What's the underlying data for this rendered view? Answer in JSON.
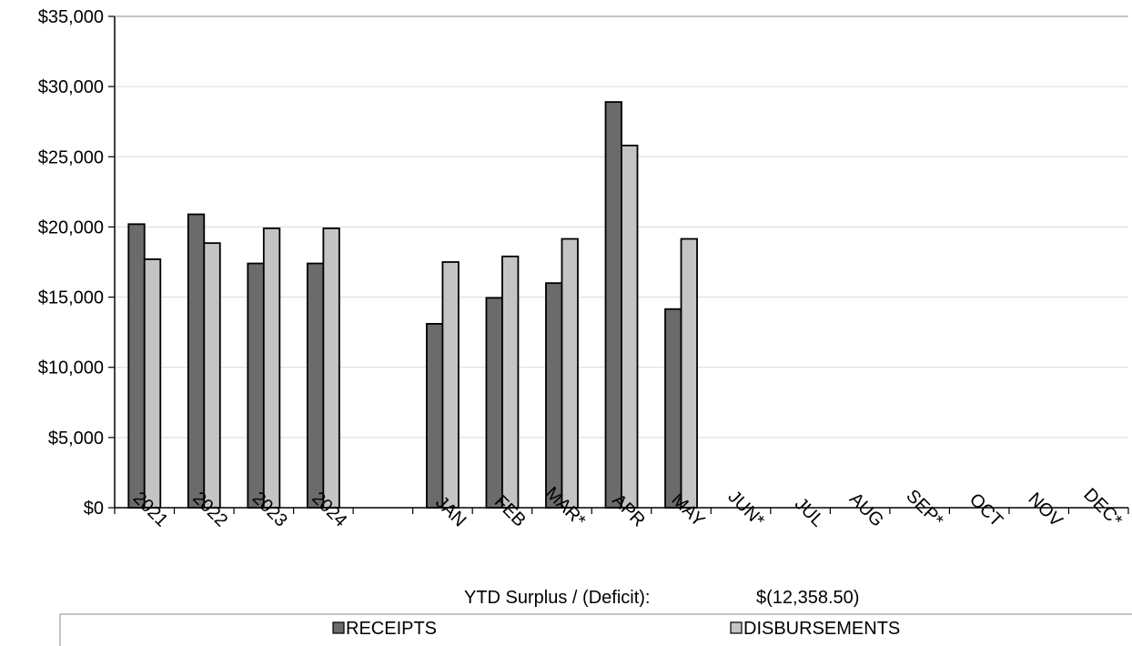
{
  "chart_data": {
    "type": "bar",
    "categories": [
      "2021",
      "2022",
      "2023",
      "2024",
      "",
      "JAN",
      "FEB",
      "MAR*",
      "APR",
      "MAY",
      "JUN*",
      "JUL",
      "AUG",
      "SEP*",
      "OCT",
      "NOV",
      "DEC*"
    ],
    "series": [
      {
        "name": "RECEIPTS",
        "color": "#6b6b6b",
        "values": [
          20200,
          20900,
          17400,
          17400,
          null,
          13100,
          14950,
          16000,
          28900,
          14150,
          null,
          null,
          null,
          null,
          null,
          null,
          null
        ]
      },
      {
        "name": "DISBURSEMENTS",
        "color": "#c4c4c4",
        "values": [
          17700,
          18850,
          19900,
          19900,
          null,
          17500,
          17900,
          19150,
          25800,
          19150,
          null,
          null,
          null,
          null,
          null,
          null,
          null
        ]
      }
    ],
    "ylim": [
      0,
      35000
    ],
    "yticks": [
      "$0",
      "$5,000",
      "$10,000",
      "$15,000",
      "$20,000",
      "$25,000",
      "$30,000",
      "$35,000"
    ],
    "ytick_values": [
      0,
      5000,
      10000,
      15000,
      20000,
      25000,
      30000,
      35000
    ],
    "grid": true,
    "legend_position": "bottom",
    "annotation": {
      "label": "YTD Surplus / (Deficit):",
      "value": "$(12,358.50)"
    }
  }
}
